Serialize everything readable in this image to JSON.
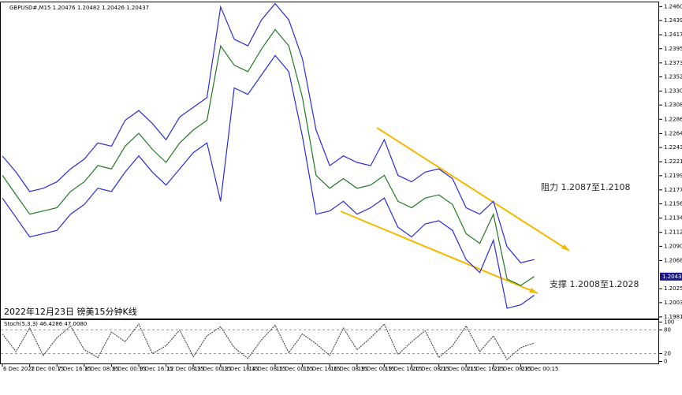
{
  "chart_data": [
    {
      "type": "line",
      "title": "2022年12月23日 镑美15分钟K线",
      "header": "GBPUSD#,M15  1.20476 1.20482 1.20426 1.20437",
      "annotations": [
        "阻力 1.2087至1.2108",
        "支撑 1.2008至1.2028"
      ],
      "categories": [
        "6 Dec 2022",
        null,
        "7 Dec 00:15",
        null,
        "7 Dec 16:15",
        null,
        "8 Dec 08:15",
        null,
        "9 Dec 00:15",
        null,
        "9 Dec 16:15",
        null,
        "12 Dec 08:15",
        null,
        "13 Dec 00:15",
        null,
        "13 Dec 16:15",
        null,
        "14 Dec 08:15",
        null,
        "15 Dec 00:15",
        null,
        "15 Dec 16:15",
        null,
        "16 Dec 08:15",
        null,
        "19 Dec 00:15",
        null,
        "19 Dec 16:15",
        null,
        "20 Dec 08:15",
        null,
        "21 Dec 00:15",
        null,
        "21 Dec 16:15",
        null,
        "22 Dec 08:15",
        null,
        "23 Dec 00:15",
        null
      ],
      "series": [
        {
          "color": "#2b2bd6",
          "values": [
            1.223,
            1.2205,
            1.2175,
            1.218,
            1.219,
            1.221,
            1.2225,
            1.225,
            1.2245,
            1.2285,
            1.23,
            1.228,
            1.2255,
            1.229,
            1.2305,
            1.232,
            1.246,
            1.241,
            1.24,
            1.244,
            1.2465,
            1.244,
            1.238,
            1.227,
            1.2215,
            1.223,
            1.222,
            1.2215,
            1.2255,
            1.22,
            1.219,
            1.2205,
            1.221,
            1.2195,
            1.215,
            1.214,
            1.216,
            1.209,
            1.2065,
            1.207
          ]
        },
        {
          "color": "#1f7a1f",
          "values": [
            1.22,
            1.217,
            1.214,
            1.2145,
            1.215,
            1.2175,
            1.219,
            1.2215,
            1.221,
            1.2245,
            1.2265,
            1.224,
            1.222,
            1.225,
            1.227,
            1.2285,
            1.24,
            1.237,
            1.236,
            1.2395,
            1.2425,
            1.24,
            1.232,
            1.22,
            1.218,
            1.2195,
            1.218,
            1.2185,
            1.22,
            1.216,
            1.215,
            1.2165,
            1.217,
            1.2155,
            1.211,
            1.2095,
            1.214,
            1.204,
            1.203,
            1.2044
          ]
        },
        {
          "color": "#2b2bd6",
          "values": [
            1.2165,
            1.2135,
            1.2105,
            1.211,
            1.2115,
            1.214,
            1.2155,
            1.218,
            1.2175,
            1.2205,
            1.223,
            1.2205,
            1.2185,
            1.221,
            1.2235,
            1.225,
            1.216,
            1.2335,
            1.2325,
            1.2355,
            1.2385,
            1.236,
            1.226,
            1.214,
            1.2145,
            1.216,
            1.214,
            1.215,
            1.2165,
            1.212,
            1.2105,
            1.2125,
            1.213,
            1.2115,
            1.207,
            1.205,
            1.21,
            1.1995,
            1.2,
            1.2015
          ]
        }
      ],
      "last_price": 1.20437,
      "ylim": [
        1.1979,
        1.2467
      ],
      "yticks": [
        1.24605,
        {
          "value": 1.2439,
          "label": "1.24390"
        },
        {
          "value": 1.2417,
          "label": "1.24170"
        },
        1.23955,
        1.23735,
        {
          "value": 1.2352,
          "label": "1.23520"
        },
        {
          "value": 1.233,
          "label": "1.23300"
        },
        1.23085,
        1.22865,
        1.22645,
        {
          "value": 1.2243,
          "label": "1.22430"
        },
        {
          "value": 1.2221,
          "label": "1.22210"
        },
        1.21995,
        1.21775,
        {
          "value": 1.2156,
          "label": "1.21560"
        },
        {
          "value": 1.2134,
          "label": "1.21340"
        },
        {
          "value": 1.2112,
          "label": "1.21120"
        },
        1.20905,
        1.20685,
        {
          "value": 1.2025,
          "label": "1.20250"
        },
        1.20035,
        1.19815
      ]
    },
    {
      "type": "line",
      "title": "Stoch(5,3,3) 46.4286 47.0080",
      "series": [
        {
          "color": "#333333",
          "values": [
            70,
            25,
            85,
            15,
            60,
            90,
            30,
            10,
            75,
            50,
            95,
            20,
            40,
            80,
            12,
            65,
            88,
            35,
            8,
            55,
            92,
            22,
            70,
            45,
            15,
            85,
            30,
            60,
            95,
            18,
            50,
            78,
            10,
            40,
            90,
            25,
            65,
            5,
            35,
            47
          ]
        }
      ],
      "ylim": [
        -5,
        105
      ],
      "yticks": [
        100,
        80,
        20,
        0
      ]
    }
  ]
}
